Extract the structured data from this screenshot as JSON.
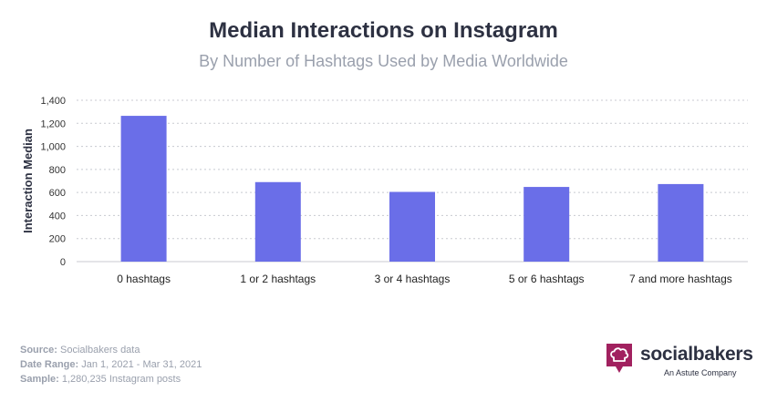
{
  "title": "Median Interactions on Instagram",
  "subtitle": "By Number of Hashtags Used by Media Worldwide",
  "chart_data": {
    "type": "bar",
    "categories": [
      "0 hashtags",
      "1 or 2 hashtags",
      "3 or 4 hashtags",
      "5 or 6 hashtags",
      "7 and more hashtags"
    ],
    "values": [
      1265,
      690,
      605,
      648,
      673
    ],
    "ylabel": "Interaction Median",
    "xlabel": "",
    "ylim": [
      0,
      1400
    ],
    "yticks": [
      0,
      200,
      400,
      600,
      800,
      1000,
      1200,
      1400
    ],
    "ytick_labels": [
      "0",
      "200",
      "400",
      "600",
      "800",
      "1,000",
      "1,200",
      "1,400"
    ],
    "grid": true,
    "bar_color": "#6a6ee8"
  },
  "footer": {
    "source_label": "Source:",
    "source_value": "Socialbakers data",
    "range_label": "Date Range:",
    "range_value": "Jan 1, 2021 - Mar 31, 2021",
    "sample_label": "Sample:",
    "sample_value": "1,280,235 Instagram posts"
  },
  "logo": {
    "name": "socialbakers",
    "tagline": "An Astute Company",
    "icon": "chef-hat-icon",
    "color": "#a1215f"
  }
}
